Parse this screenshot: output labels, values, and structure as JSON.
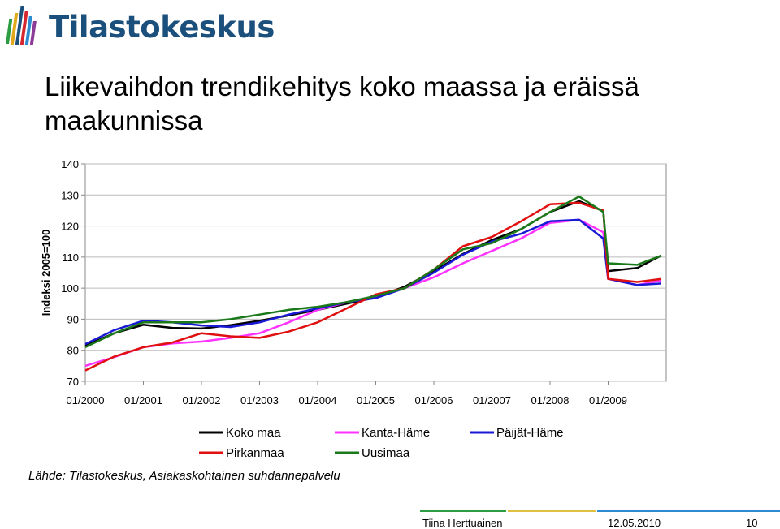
{
  "header": {
    "logo_text": "Tilastokeskus"
  },
  "title": "Liikevaihdon trendikehitys koko maassa ja eräissä maakunnissa",
  "source": "Lähde: Tilastokeskus, Asiakaskohtainen suhdannepalvelu",
  "footer": {
    "author": "Tiina Herttuainen",
    "date": "12.05.2010",
    "page": "10"
  },
  "colors": {
    "Koko maa": "#000000",
    "Kanta-Häme": "#ff33ff",
    "Päijät-Häme": "#1a1ad6",
    "Pirkanmaa": "#e01010",
    "Uusimaa": "#1a7a1a"
  },
  "chart_data": {
    "type": "line",
    "title": "",
    "ylabel": "Indeksi 2005=100",
    "xlabel": "",
    "ylim": [
      70,
      140
    ],
    "yticks": [
      70,
      80,
      90,
      100,
      110,
      120,
      130,
      140
    ],
    "x_start": "01/2000",
    "x_end": "12/2009",
    "xticks": [
      "01/2000",
      "01/2001",
      "01/2002",
      "01/2003",
      "01/2004",
      "01/2005",
      "01/2006",
      "01/2007",
      "01/2008",
      "01/2009"
    ],
    "grid": "horizontal",
    "legend": [
      "Koko maa",
      "Kanta-Häme",
      "Päijät-Häme",
      "Pirkanmaa",
      "Uusimaa"
    ],
    "series": [
      {
        "name": "Koko maa",
        "x": [
          "01/2000",
          "07/2000",
          "01/2001",
          "07/2001",
          "01/2002",
          "07/2002",
          "01/2003",
          "07/2003",
          "01/2004",
          "07/2004",
          "01/2005",
          "07/2005",
          "01/2006",
          "07/2006",
          "01/2007",
          "07/2007",
          "01/2008",
          "07/2008",
          "12/2008",
          "01/2009",
          "07/2009",
          "12/2009"
        ],
        "values": [
          81.5,
          85.5,
          88.2,
          87.2,
          87.0,
          88.1,
          89.5,
          91.2,
          93.0,
          95.0,
          97.0,
          100.5,
          105.5,
          111.0,
          115.5,
          119.0,
          124.5,
          128.0,
          124.8,
          105.5,
          106.5,
          110.5
        ]
      },
      {
        "name": "Kanta-Häme",
        "x": [
          "01/2000",
          "07/2000",
          "01/2001",
          "07/2001",
          "01/2002",
          "07/2002",
          "01/2003",
          "07/2003",
          "01/2004",
          "07/2004",
          "01/2005",
          "07/2005",
          "01/2006",
          "07/2006",
          "01/2007",
          "07/2007",
          "01/2008",
          "07/2008",
          "12/2008",
          "01/2009",
          "07/2009",
          "12/2009"
        ],
        "values": [
          75.0,
          77.8,
          81.0,
          82.2,
          82.8,
          84.0,
          85.5,
          89.0,
          93.0,
          95.5,
          97.2,
          100.0,
          103.5,
          108.0,
          112.0,
          116.0,
          121.0,
          122.0,
          118.0,
          103.0,
          101.0,
          102.5
        ]
      },
      {
        "name": "Päijät-Häme",
        "x": [
          "01/2000",
          "07/2000",
          "01/2001",
          "07/2001",
          "01/2002",
          "07/2002",
          "01/2003",
          "07/2003",
          "01/2004",
          "07/2004",
          "01/2005",
          "07/2005",
          "01/2006",
          "07/2006",
          "01/2007",
          "07/2007",
          "01/2008",
          "07/2008",
          "12/2008",
          "01/2009",
          "07/2009",
          "12/2009"
        ],
        "values": [
          82.0,
          86.5,
          89.5,
          89.0,
          88.0,
          87.5,
          89.0,
          91.5,
          93.5,
          95.5,
          96.8,
          100.0,
          105.0,
          110.8,
          115.0,
          117.5,
          121.5,
          122.0,
          116.0,
          103.0,
          101.0,
          101.5
        ]
      },
      {
        "name": "Pirkanmaa",
        "x": [
          "01/2000",
          "07/2000",
          "01/2001",
          "07/2001",
          "01/2002",
          "07/2002",
          "01/2003",
          "07/2003",
          "01/2004",
          "07/2004",
          "01/2005",
          "07/2005",
          "01/2006",
          "07/2006",
          "01/2007",
          "07/2007",
          "01/2008",
          "07/2008",
          "12/2008",
          "01/2009",
          "07/2009",
          "12/2009"
        ],
        "values": [
          73.5,
          78.0,
          81.0,
          82.5,
          85.5,
          84.5,
          84.0,
          86.0,
          89.0,
          93.5,
          98.0,
          100.0,
          106.0,
          113.5,
          116.5,
          121.5,
          127.0,
          127.5,
          125.0,
          103.0,
          102.0,
          103.0
        ]
      },
      {
        "name": "Uusimaa",
        "x": [
          "01/2000",
          "07/2000",
          "01/2001",
          "07/2001",
          "01/2002",
          "07/2002",
          "01/2003",
          "07/2003",
          "01/2004",
          "07/2004",
          "01/2005",
          "07/2005",
          "01/2006",
          "07/2006",
          "01/2007",
          "07/2007",
          "01/2008",
          "07/2008",
          "12/2008",
          "01/2009",
          "07/2009",
          "12/2009"
        ],
        "values": [
          81.0,
          85.5,
          89.0,
          89.0,
          89.0,
          90.0,
          91.5,
          93.0,
          94.0,
          95.5,
          97.5,
          100.0,
          106.0,
          112.5,
          114.5,
          119.0,
          124.5,
          129.5,
          124.5,
          108.0,
          107.5,
          110.5
        ]
      }
    ]
  }
}
